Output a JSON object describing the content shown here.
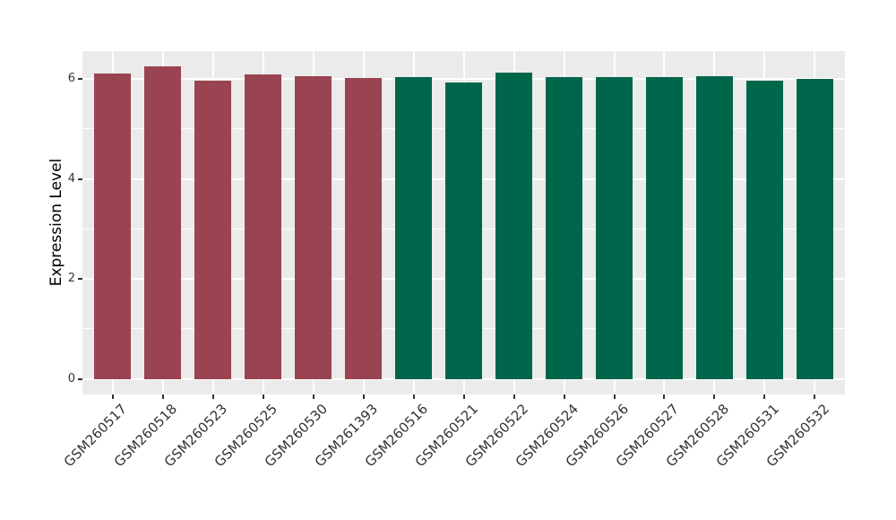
{
  "chart_data": {
    "type": "bar",
    "title": "",
    "xlabel": "",
    "ylabel": "Expression Level",
    "categories": [
      "GSM260517",
      "GSM260518",
      "GSM260523",
      "GSM260525",
      "GSM260530",
      "GSM261393",
      "GSM260516",
      "GSM260521",
      "GSM260522",
      "GSM260524",
      "GSM260526",
      "GSM260527",
      "GSM260528",
      "GSM260531",
      "GSM260532"
    ],
    "values": [
      6.1,
      6.25,
      5.96,
      6.08,
      6.05,
      6.01,
      6.03,
      5.93,
      6.12,
      6.03,
      6.03,
      6.03,
      6.06,
      5.96,
      6.0
    ],
    "bar_groups": [
      0,
      0,
      0,
      0,
      0,
      0,
      1,
      1,
      1,
      1,
      1,
      1,
      1,
      1,
      1
    ],
    "group_colors": [
      "#9A4451",
      "#00664B"
    ],
    "y_ticks": [
      0,
      2,
      4,
      6
    ],
    "y_minor_ticks": [
      1,
      3,
      5
    ],
    "ylim": [
      -0.31,
      6.56
    ],
    "x_label_angle": 45,
    "legend_position": "none",
    "grid": true,
    "panel_bg": "#EBEBEB",
    "grid_color": "#FFFFFF",
    "axis_text_color": "#333333",
    "tick_color": "#333333"
  }
}
